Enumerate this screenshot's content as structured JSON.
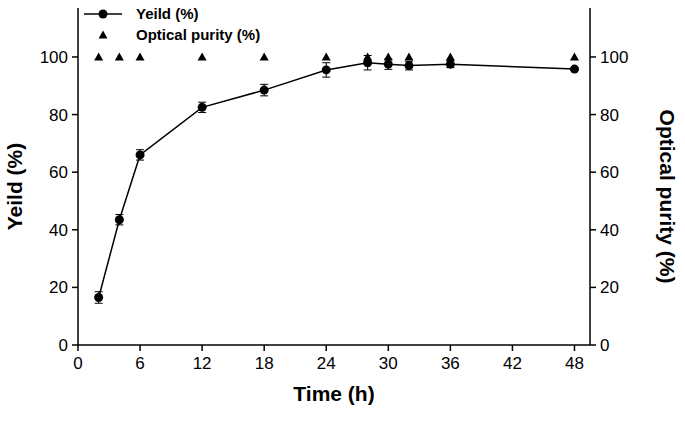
{
  "chart_data": {
    "type": "line",
    "x_label": "Time (h)",
    "y_label": "Yeild (%)",
    "y2_label": "Optical purity (%)",
    "x": [
      2,
      4,
      6,
      12,
      18,
      24,
      28,
      30,
      32,
      36,
      48
    ],
    "xlim": [
      0,
      49.5
    ],
    "xticks": [
      0,
      6,
      12,
      18,
      24,
      30,
      36,
      42,
      48
    ],
    "ylim": [
      0,
      117
    ],
    "yticks": [
      0,
      20,
      40,
      60,
      80,
      100
    ],
    "y2lim": [
      0,
      117
    ],
    "y2ticks": [
      0,
      20,
      40,
      60,
      80,
      100
    ],
    "legend": "upper-left",
    "series": [
      {
        "name": "Yeild (%)",
        "type": "line",
        "marker": "circle",
        "color": "#000000",
        "values": [
          16.5,
          43.5,
          66,
          82.5,
          88.5,
          95.5,
          98,
          97.5,
          97,
          97.5,
          95.8
        ],
        "errors": [
          2,
          1.8,
          1.8,
          1.8,
          2,
          2.5,
          2.5,
          1.8,
          1.5,
          1.2,
          0.5
        ]
      },
      {
        "name": "Optical purity (%)",
        "type": "scatter",
        "marker": "triangle",
        "color": "#000000",
        "axis": "y2",
        "values": [
          100,
          100,
          100,
          100,
          100,
          100,
          100,
          100,
          100,
          100,
          100
        ]
      }
    ]
  }
}
